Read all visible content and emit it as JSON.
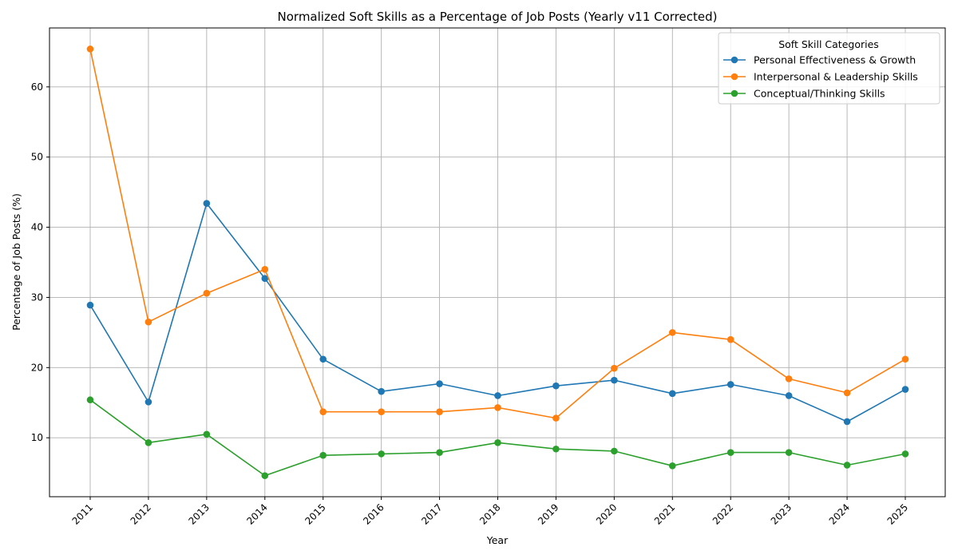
{
  "chart_data": {
    "type": "line",
    "title": "Normalized Soft Skills as a Percentage of Job Posts (Yearly v11 Corrected)",
    "xlabel": "Year",
    "ylabel": "Percentage of Job Posts (%)",
    "x": [
      "2011",
      "2012",
      "2013",
      "2014",
      "2015",
      "2016",
      "2017",
      "2018",
      "2019",
      "2020",
      "2021",
      "2022",
      "2023",
      "2024",
      "2025"
    ],
    "ylim": [
      1.6,
      68.4
    ],
    "yticks": [
      10,
      20,
      30,
      40,
      50,
      60
    ],
    "grid": true,
    "legend": {
      "title": "Soft Skill Categories",
      "placement": "top-right"
    },
    "series": [
      {
        "name": "Personal Effectiveness & Growth",
        "color": "#1f77b4",
        "values": [
          28.9,
          15.1,
          43.4,
          32.7,
          21.2,
          16.6,
          17.7,
          16.0,
          17.4,
          18.2,
          16.3,
          17.6,
          16.0,
          12.3,
          16.9
        ]
      },
      {
        "name": "Interpersonal & Leadership Skills",
        "color": "#ff7f0e",
        "values": [
          65.4,
          26.5,
          30.6,
          34.0,
          13.7,
          13.7,
          13.7,
          14.3,
          12.8,
          19.9,
          25.0,
          24.0,
          18.4,
          16.4,
          21.2
        ]
      },
      {
        "name": "Conceptual/Thinking Skills",
        "color": "#2ca02c",
        "values": [
          15.4,
          9.3,
          10.5,
          4.6,
          7.5,
          7.7,
          7.9,
          9.3,
          8.4,
          8.1,
          6.0,
          7.9,
          7.9,
          6.1,
          7.7
        ]
      }
    ]
  }
}
